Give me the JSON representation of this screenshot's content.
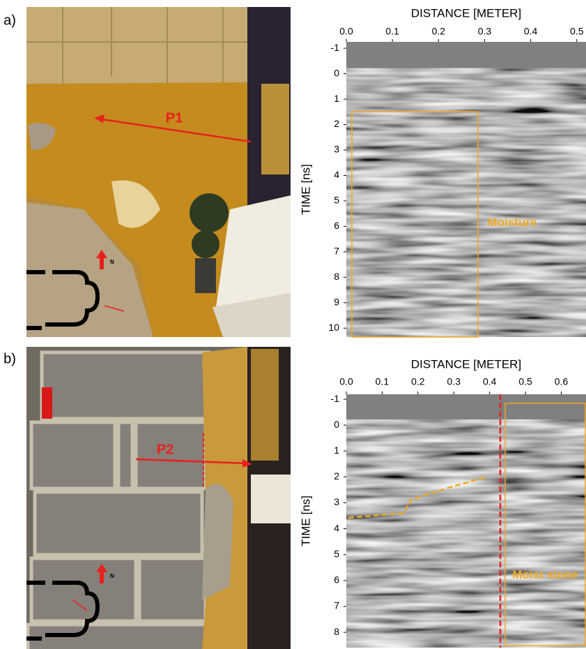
{
  "panels": [
    {
      "label": "a)",
      "photo": {
        "profile": "P1",
        "north": "N"
      },
      "radargram": {
        "xlabel": "DISTANCE [METER]",
        "ylabel": "TIME [ns]",
        "xlim": [
          0,
          0.52
        ],
        "ylim": [
          -1.25,
          10.35
        ],
        "xticks": [
          {
            "value": 0,
            "label": "0.0"
          },
          0.1,
          0.2,
          0.3,
          0.4,
          0.5
        ],
        "yticks": [
          -1,
          0,
          1,
          2,
          3,
          4,
          5,
          6,
          7,
          8,
          9,
          10
        ],
        "annotation": "Moisture"
      }
    },
    {
      "label": "b)",
      "photo": {
        "profile": "P2",
        "north": "N"
      },
      "radargram": {
        "xlabel": "DISTANCE [METER]",
        "ylabel": "TIME [ns]",
        "xlim": [
          0,
          0.669
        ],
        "ylim": [
          -1.19,
          8.59
        ],
        "xticks": [
          {
            "value": 0,
            "label": "0.0"
          },
          0.1,
          0.2,
          0.3,
          0.4,
          0.5,
          0.6
        ],
        "yticks": [
          -1,
          0,
          1,
          2,
          3,
          4,
          5,
          6,
          7,
          8
        ],
        "annotation": "Moist stone"
      }
    }
  ]
}
